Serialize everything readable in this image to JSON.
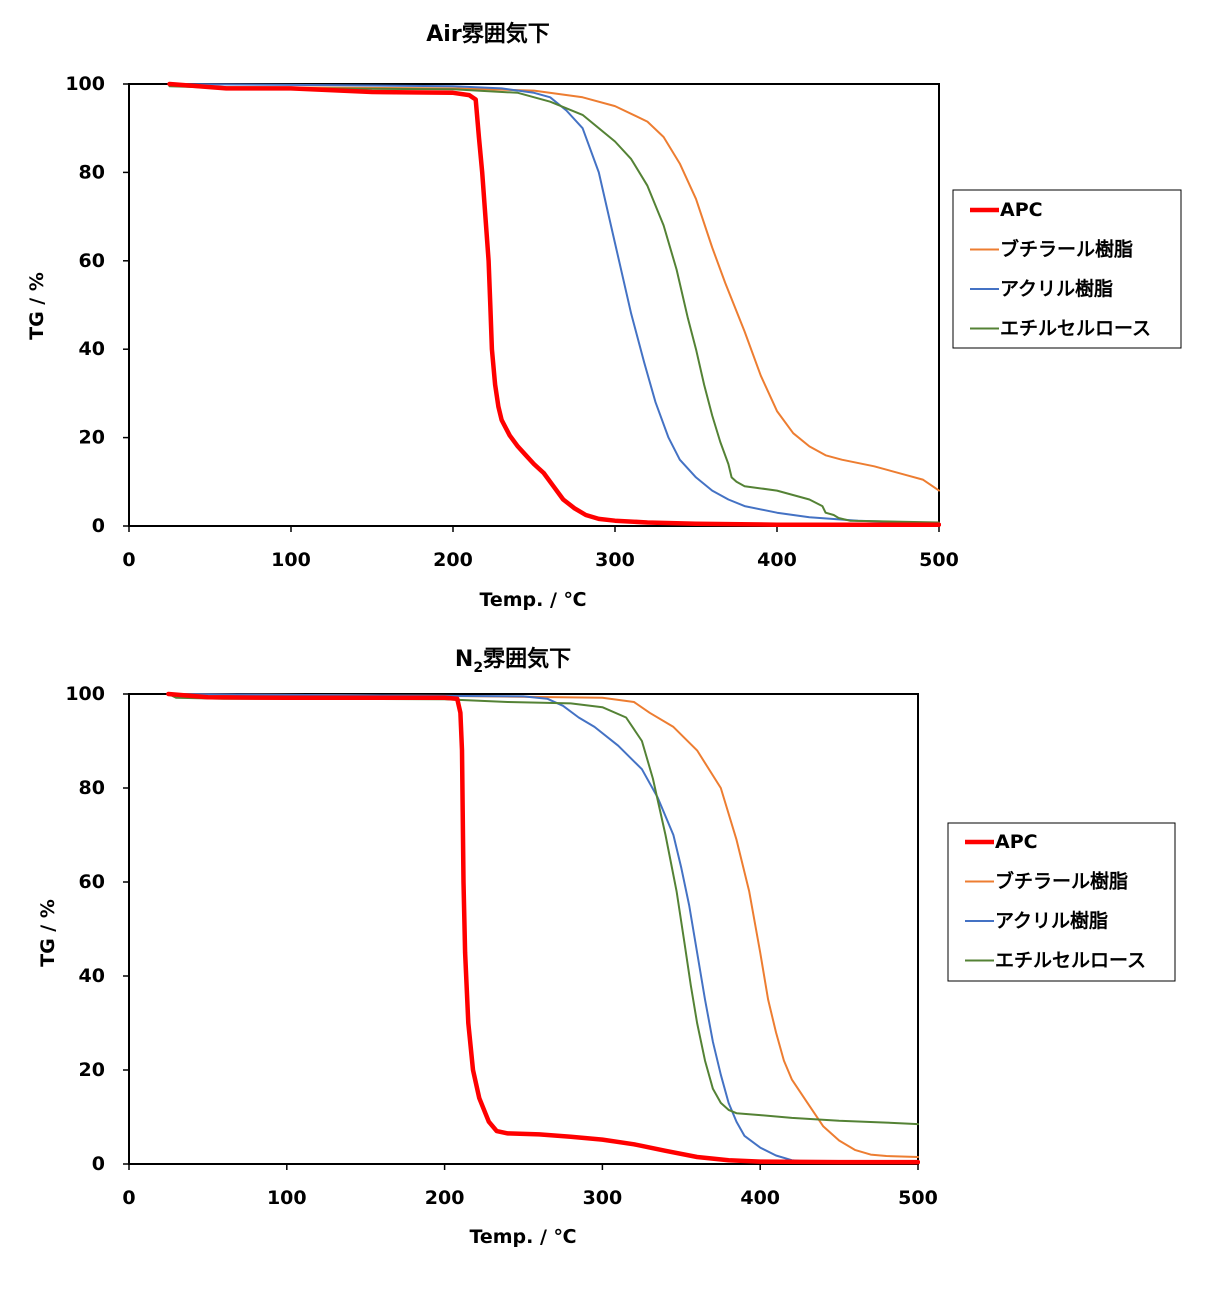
{
  "chart_data": [
    {
      "type": "line",
      "title": "Air雰囲気下",
      "xlabel": "Temp. / ℃",
      "ylabel": "TG / %",
      "xlim": [
        0,
        500
      ],
      "ylim": [
        0,
        100
      ],
      "x_ticks": [
        "0",
        "100",
        "200",
        "300",
        "400",
        "500"
      ],
      "y_ticks": [
        "0",
        "20",
        "40",
        "60",
        "80",
        "100"
      ],
      "grid": false,
      "legend": "right",
      "series": [
        {
          "name": "APC",
          "color": "#ff0000",
          "width": 4.5,
          "points": [
            [
              25,
              100
            ],
            [
              60,
              99
            ],
            [
              100,
              99
            ],
            [
              150,
              98.2
            ],
            [
              200,
              98
            ],
            [
              210,
              97.5
            ],
            [
              214,
              96.5
            ],
            [
              216,
              88
            ],
            [
              218,
              80
            ],
            [
              220,
              70
            ],
            [
              222,
              60
            ],
            [
              223,
              50
            ],
            [
              224,
              40
            ],
            [
              226,
              32
            ],
            [
              228,
              27
            ],
            [
              230,
              24
            ],
            [
              235,
              20.5
            ],
            [
              240,
              18
            ],
            [
              245,
              16
            ],
            [
              250,
              14
            ],
            [
              256,
              12
            ],
            [
              262,
              9
            ],
            [
              268,
              6
            ],
            [
              275,
              4
            ],
            [
              282,
              2.5
            ],
            [
              290,
              1.6
            ],
            [
              300,
              1.2
            ],
            [
              320,
              0.8
            ],
            [
              350,
              0.5
            ],
            [
              400,
              0.3
            ],
            [
              500,
              0.3
            ]
          ]
        },
        {
          "name": "ブチラール樹脂",
          "color": "#ed7d31",
          "width": 2,
          "points": [
            [
              25,
              100
            ],
            [
              60,
              99.3
            ],
            [
              100,
              99.2
            ],
            [
              200,
              99
            ],
            [
              250,
              98.5
            ],
            [
              280,
              97
            ],
            [
              300,
              95
            ],
            [
              320,
              91.5
            ],
            [
              330,
              88
            ],
            [
              340,
              82
            ],
            [
              350,
              74
            ],
            [
              360,
              63
            ],
            [
              368,
              55
            ],
            [
              380,
              44
            ],
            [
              390,
              34
            ],
            [
              400,
              26
            ],
            [
              410,
              21
            ],
            [
              420,
              18
            ],
            [
              430,
              16
            ],
            [
              440,
              15
            ],
            [
              460,
              13.5
            ],
            [
              480,
              11.5
            ],
            [
              490,
              10.5
            ],
            [
              500,
              8
            ]
          ]
        },
        {
          "name": "アクリル樹脂",
          "color": "#4472c4",
          "width": 2,
          "points": [
            [
              25,
              100
            ],
            [
              100,
              99.8
            ],
            [
              200,
              99.5
            ],
            [
              230,
              99
            ],
            [
              250,
              98
            ],
            [
              260,
              97
            ],
            [
              270,
              94
            ],
            [
              280,
              90
            ],
            [
              290,
              80
            ],
            [
              300,
              64
            ],
            [
              310,
              48
            ],
            [
              318,
              37
            ],
            [
              325,
              28
            ],
            [
              333,
              20
            ],
            [
              340,
              15
            ],
            [
              350,
              11
            ],
            [
              360,
              8
            ],
            [
              370,
              6
            ],
            [
              380,
              4.5
            ],
            [
              400,
              3
            ],
            [
              420,
              2
            ],
            [
              450,
              1.2
            ],
            [
              500,
              0.6
            ]
          ]
        },
        {
          "name": "エチルセルロース",
          "color": "#548235",
          "width": 2,
          "points": [
            [
              25,
              99.5
            ],
            [
              50,
              99.2
            ],
            [
              100,
              99
            ],
            [
              200,
              98.8
            ],
            [
              240,
              98
            ],
            [
              260,
              96
            ],
            [
              280,
              93
            ],
            [
              300,
              87
            ],
            [
              310,
              83
            ],
            [
              320,
              77
            ],
            [
              330,
              68
            ],
            [
              338,
              58
            ],
            [
              345,
              47
            ],
            [
              350,
              40
            ],
            [
              355,
              32
            ],
            [
              360,
              25
            ],
            [
              365,
              19
            ],
            [
              370,
              14
            ],
            [
              372,
              11
            ],
            [
              375,
              10
            ],
            [
              380,
              9
            ],
            [
              400,
              8
            ],
            [
              420,
              6
            ],
            [
              428,
              4.5
            ],
            [
              430,
              3
            ],
            [
              435,
              2.5
            ],
            [
              438,
              1.8
            ],
            [
              445,
              1.2
            ],
            [
              500,
              0.8
            ]
          ]
        }
      ]
    },
    {
      "type": "line",
      "title": "N2雰囲気下",
      "xlabel": "Temp. / ℃",
      "ylabel": "TG / %",
      "xlim": [
        0,
        500
      ],
      "ylim": [
        0,
        100
      ],
      "x_ticks": [
        "0",
        "100",
        "200",
        "300",
        "400",
        "500"
      ],
      "y_ticks": [
        "0",
        "20",
        "40",
        "60",
        "80",
        "100"
      ],
      "grid": false,
      "legend": "right",
      "series": [
        {
          "name": "APC",
          "color": "#ff0000",
          "width": 4.5,
          "points": [
            [
              25,
              100
            ],
            [
              50,
              99.3
            ],
            [
              100,
              99.2
            ],
            [
              200,
              99.2
            ],
            [
              208,
              99
            ],
            [
              210,
              96
            ],
            [
              211,
              88
            ],
            [
              211.5,
              75
            ],
            [
              212,
              60
            ],
            [
              213,
              45
            ],
            [
              215,
              30
            ],
            [
              218,
              20
            ],
            [
              222,
              14
            ],
            [
              228,
              9
            ],
            [
              233,
              7
            ],
            [
              240,
              6.5
            ],
            [
              260,
              6.3
            ],
            [
              280,
              5.8
            ],
            [
              300,
              5.2
            ],
            [
              320,
              4.2
            ],
            [
              340,
              2.8
            ],
            [
              360,
              1.5
            ],
            [
              380,
              0.8
            ],
            [
              400,
              0.5
            ],
            [
              450,
              0.4
            ],
            [
              500,
              0.4
            ]
          ]
        },
        {
          "name": "ブチラール樹脂",
          "color": "#ed7d31",
          "width": 2,
          "points": [
            [
              25,
              100
            ],
            [
              100,
              99.8
            ],
            [
              200,
              99.6
            ],
            [
              300,
              99.2
            ],
            [
              320,
              98.3
            ],
            [
              330,
              96
            ],
            [
              345,
              93
            ],
            [
              360,
              88
            ],
            [
              375,
              80
            ],
            [
              385,
              69
            ],
            [
              393,
              58
            ],
            [
              400,
              45
            ],
            [
              405,
              35
            ],
            [
              410,
              28
            ],
            [
              415,
              22
            ],
            [
              420,
              18
            ],
            [
              430,
              13
            ],
            [
              440,
              8
            ],
            [
              450,
              5
            ],
            [
              460,
              3
            ],
            [
              470,
              2
            ],
            [
              480,
              1.7
            ],
            [
              500,
              1.5
            ]
          ]
        },
        {
          "name": "アクリル樹脂",
          "color": "#4472c4",
          "width": 2,
          "points": [
            [
              25,
              100
            ],
            [
              100,
              99.8
            ],
            [
              200,
              99.6
            ],
            [
              250,
              99.5
            ],
            [
              265,
              99
            ],
            [
              275,
              97.5
            ],
            [
              285,
              95
            ],
            [
              295,
              93
            ],
            [
              310,
              89
            ],
            [
              325,
              84
            ],
            [
              335,
              78
            ],
            [
              345,
              70
            ],
            [
              350,
              63
            ],
            [
              355,
              55
            ],
            [
              360,
              45
            ],
            [
              365,
              35
            ],
            [
              370,
              26
            ],
            [
              375,
              19
            ],
            [
              380,
              13
            ],
            [
              385,
              9
            ],
            [
              390,
              6
            ],
            [
              400,
              3.5
            ],
            [
              410,
              1.8
            ],
            [
              420,
              0.8
            ],
            [
              430,
              0.5
            ],
            [
              500,
              0.5
            ]
          ]
        },
        {
          "name": "エチルセルロース",
          "color": "#548235",
          "width": 2,
          "points": [
            [
              25,
              100
            ],
            [
              30,
              99.2
            ],
            [
              60,
              99
            ],
            [
              200,
              98.9
            ],
            [
              240,
              98.3
            ],
            [
              280,
              98
            ],
            [
              300,
              97.2
            ],
            [
              315,
              95
            ],
            [
              325,
              90
            ],
            [
              332,
              82
            ],
            [
              340,
              70
            ],
            [
              347,
              58
            ],
            [
              352,
              47
            ],
            [
              356,
              38
            ],
            [
              360,
              30
            ],
            [
              365,
              22
            ],
            [
              370,
              16
            ],
            [
              375,
              13
            ],
            [
              380,
              11.5
            ],
            [
              385,
              10.8
            ],
            [
              400,
              10.4
            ],
            [
              420,
              9.8
            ],
            [
              450,
              9.2
            ],
            [
              480,
              8.8
            ],
            [
              500,
              8.5
            ]
          ]
        }
      ]
    }
  ]
}
